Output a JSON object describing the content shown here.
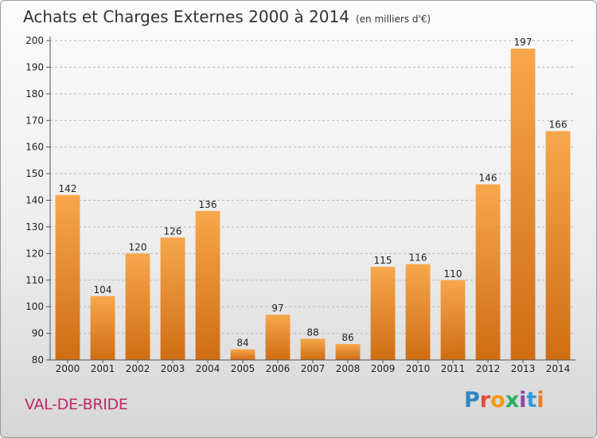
{
  "title": "Achats et Charges Externes 2000 à 2014",
  "unit": "(en milliers d'€)",
  "town": "VAL-DE-BRIDE",
  "logo": {
    "text": "Proxiti",
    "letter_colors": [
      "#2e86c1",
      "#e74c3c",
      "#f39c12",
      "#27ae60",
      "#8e44ad",
      "#3498db",
      "#e67e22"
    ]
  },
  "colors": {
    "bar_top": "#f7a74c",
    "bar_bottom": "#cf6d14",
    "grid": "#b8b8b8",
    "axis_text": "#222222",
    "town": "#c0286a"
  },
  "chart_data": {
    "type": "bar",
    "title": "Achats et Charges Externes 2000 à 2014",
    "xlabel": "",
    "ylabel": "",
    "ylim": [
      80,
      200
    ],
    "yticks": [
      80,
      90,
      100,
      110,
      120,
      130,
      140,
      150,
      160,
      170,
      180,
      190,
      200
    ],
    "grid": true,
    "categories": [
      "2000",
      "2001",
      "2002",
      "2003",
      "2004",
      "2005",
      "2006",
      "2007",
      "2008",
      "2009",
      "2010",
      "2011",
      "2012",
      "2013",
      "2014"
    ],
    "values": [
      142,
      104,
      120,
      126,
      136,
      84,
      97,
      88,
      86,
      115,
      116,
      110,
      146,
      197,
      166
    ]
  }
}
